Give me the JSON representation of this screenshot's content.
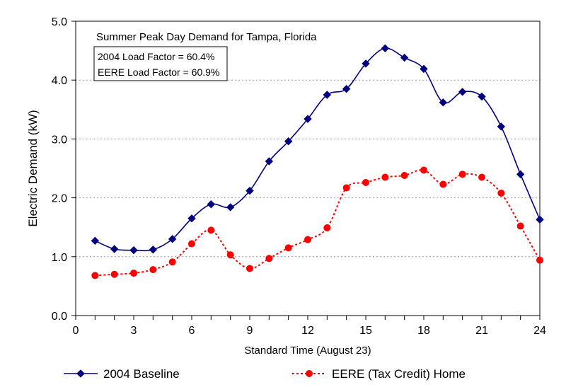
{
  "chart_data": {
    "type": "line",
    "title": "Summer Peak Day Demand for Tampa, Florida",
    "annotations": [
      "2004 Load Factor  = 60.4%",
      "EERE Load Factor = 60.9%"
    ],
    "xlabel": "Standard Time (August 23)",
    "ylabel": "Electric Demand (kW)",
    "xlim": [
      0,
      24
    ],
    "ylim": [
      0,
      5
    ],
    "xticks": [
      0,
      3,
      6,
      9,
      12,
      15,
      18,
      21,
      24
    ],
    "yticks": [
      "0.0",
      "1.0",
      "2.0",
      "3.0",
      "4.0",
      "5.0"
    ],
    "grid": "horizontal dotted",
    "legend_position": "bottom",
    "x": [
      1,
      2,
      3,
      4,
      5,
      6,
      7,
      8,
      9,
      10,
      11,
      12,
      13,
      14,
      15,
      16,
      17,
      18,
      19,
      20,
      21,
      22,
      23,
      24
    ],
    "series": [
      {
        "name": "2004 Baseline",
        "color": "#000080",
        "marker": "diamond",
        "line": "solid",
        "values": [
          1.27,
          1.13,
          1.11,
          1.12,
          1.3,
          1.65,
          1.89,
          1.84,
          2.12,
          2.62,
          2.96,
          3.34,
          3.75,
          3.85,
          4.28,
          4.54,
          4.38,
          4.19,
          3.62,
          3.8,
          3.72,
          3.21,
          2.4,
          1.63
        ]
      },
      {
        "name": "EERE (Tax Credit) Home",
        "color": "#ff0000",
        "marker": "circle",
        "line": "dotted",
        "values": [
          0.68,
          0.7,
          0.72,
          0.78,
          0.91,
          1.22,
          1.45,
          1.03,
          0.8,
          0.97,
          1.15,
          1.29,
          1.49,
          2.17,
          2.26,
          2.35,
          2.38,
          2.47,
          2.23,
          2.4,
          2.35,
          2.08,
          1.52,
          0.94
        ]
      }
    ]
  }
}
